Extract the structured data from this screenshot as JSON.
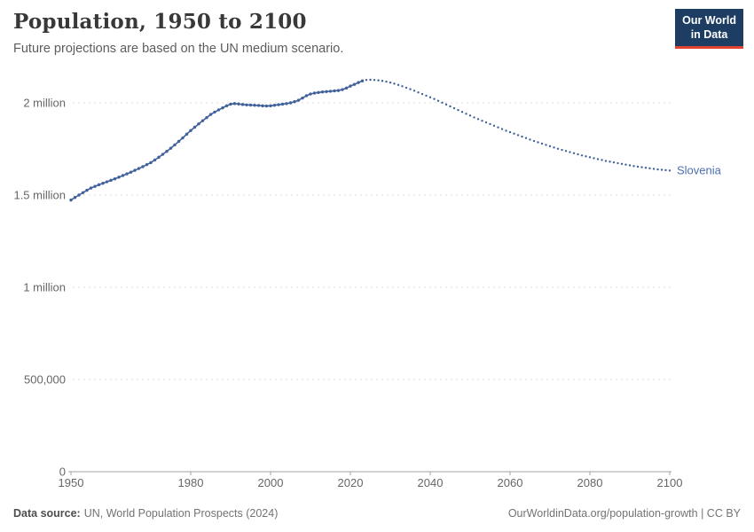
{
  "header": {
    "title": "Population, 1950 to 2100",
    "subtitle": "Future projections are based on the UN medium scenario.",
    "logo": {
      "line1": "Our World",
      "line2": "in Data"
    }
  },
  "footer": {
    "source_label": "Data source:",
    "source_text": "UN, World Population Prospects (2024)",
    "credit": "OurWorldinData.org/population-growth | CC BY"
  },
  "colors": {
    "line": "#41619b",
    "entity_label": "#4d6fae",
    "grid": "#dcdcdc",
    "axis": "#a3a3a3",
    "tick_label": "#666666",
    "title": "#383838",
    "subtitle": "#5d5d5d",
    "footer_text": "#737373",
    "footer_label": "#4f4f4f",
    "logo_bg": "#1d3d63",
    "logo_red": "#e0432f",
    "logo_text": "#ffffff",
    "background": "#ffffff"
  },
  "chart_data": {
    "type": "line",
    "title": "Population, 1950 to 2100",
    "entity_label": "Slovenia",
    "unit": "million people",
    "xlim": [
      1950,
      2100
    ],
    "ylim_millions": [
      0,
      2.2
    ],
    "grid": true,
    "legend_position": "end-of-line",
    "x_ticks": [
      1950,
      1980,
      2000,
      2020,
      2040,
      2060,
      2080,
      2100
    ],
    "y_ticks": [
      {
        "value": 0,
        "label": "0"
      },
      {
        "value": 0.5,
        "label": "500,000"
      },
      {
        "value": 1,
        "label": "1 million"
      },
      {
        "value": 1.5,
        "label": "1.5 million"
      },
      {
        "value": 2,
        "label": "2 million"
      }
    ],
    "series": [
      {
        "name": "Slovenia",
        "segment": "historical",
        "style": "solid-with-markers",
        "start_year": 1950,
        "values_millions": [
          1.473,
          1.487,
          1.5,
          1.513,
          1.526,
          1.538,
          1.547,
          1.556,
          1.564,
          1.572,
          1.58,
          1.588,
          1.597,
          1.606,
          1.615,
          1.624,
          1.634,
          1.644,
          1.654,
          1.665,
          1.676,
          1.69,
          1.705,
          1.721,
          1.737,
          1.754,
          1.772,
          1.791,
          1.81,
          1.83,
          1.85,
          1.868,
          1.886,
          1.903,
          1.92,
          1.937,
          1.95,
          1.962,
          1.973,
          1.984,
          1.993,
          1.996,
          1.994,
          1.991,
          1.989,
          1.988,
          1.987,
          1.986,
          1.984,
          1.983,
          1.984,
          1.987,
          1.99,
          1.993,
          1.996,
          2.0,
          2.006,
          2.014,
          2.026,
          2.039,
          2.048,
          2.053,
          2.056,
          2.059,
          2.061,
          2.063,
          2.065,
          2.067,
          2.072,
          2.08,
          2.091,
          2.1,
          2.11,
          2.119
        ]
      },
      {
        "name": "Slovenia",
        "segment": "projection (UN medium scenario)",
        "style": "dotted",
        "start_year": 2024,
        "values_millions": [
          2.124,
          2.125,
          2.124,
          2.122,
          2.119,
          2.115,
          2.11,
          2.104,
          2.097,
          2.09,
          2.082,
          2.074,
          2.066,
          2.057,
          2.048,
          2.039,
          2.03,
          2.021,
          2.011,
          2.001,
          1.991,
          1.981,
          1.971,
          1.961,
          1.951,
          1.941,
          1.931,
          1.921,
          1.912,
          1.903,
          1.894,
          1.885,
          1.876,
          1.867,
          1.858,
          1.849,
          1.841,
          1.833,
          1.825,
          1.817,
          1.809,
          1.801,
          1.793,
          1.786,
          1.779,
          1.772,
          1.765,
          1.758,
          1.751,
          1.745,
          1.739,
          1.733,
          1.727,
          1.721,
          1.715,
          1.71,
          1.705,
          1.7,
          1.695,
          1.69,
          1.685,
          1.681,
          1.677,
          1.673,
          1.669,
          1.665,
          1.661,
          1.657,
          1.654,
          1.651,
          1.648,
          1.645,
          1.642,
          1.639,
          1.637,
          1.635,
          1.633
        ]
      }
    ]
  }
}
